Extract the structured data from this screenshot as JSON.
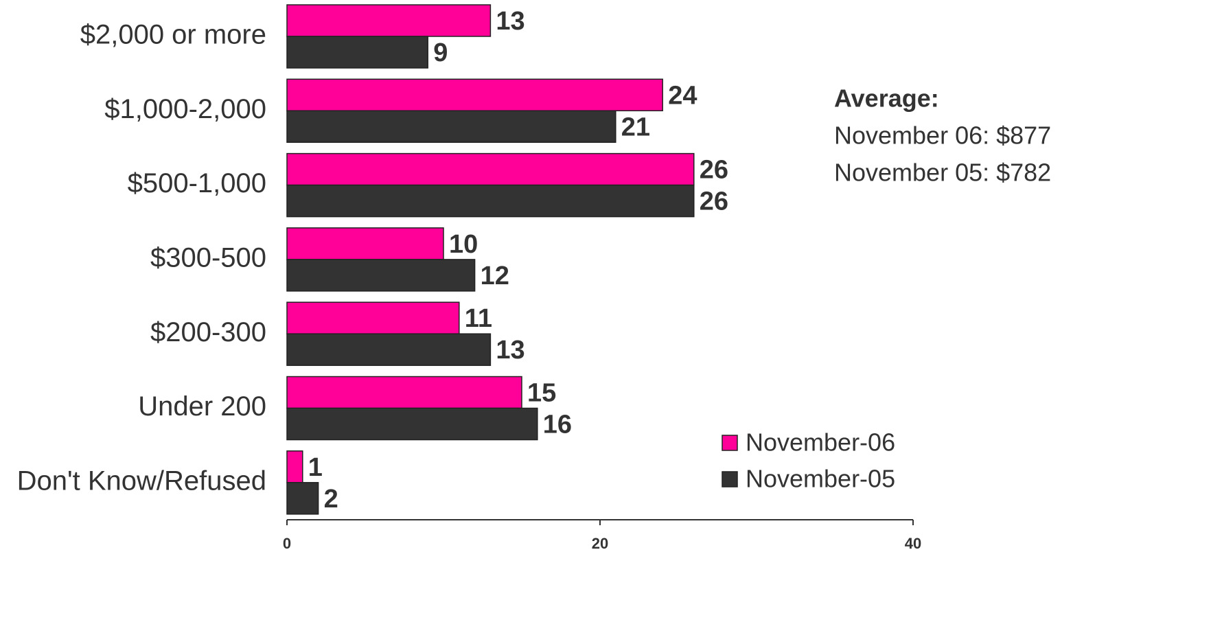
{
  "chart_data": {
    "type": "bar",
    "orientation": "horizontal",
    "categories": [
      "$2,000 or more",
      "$1,000-2,000",
      "$500-1,000",
      "$300-500",
      "$200-300",
      "Under 200",
      "Don't Know/Refused"
    ],
    "series": [
      {
        "name": "November-06",
        "color": "#ff0099",
        "values": [
          13,
          24,
          26,
          10,
          11,
          15,
          1
        ]
      },
      {
        "name": "November-05",
        "color": "#333333",
        "values": [
          9,
          21,
          26,
          12,
          13,
          16,
          2
        ]
      }
    ],
    "xlim": [
      0,
      40
    ],
    "xticks": [
      0,
      20,
      40
    ],
    "legend": "lower right",
    "annotations": [
      "Average:",
      "November 06: $877",
      "November 05: $782"
    ]
  }
}
